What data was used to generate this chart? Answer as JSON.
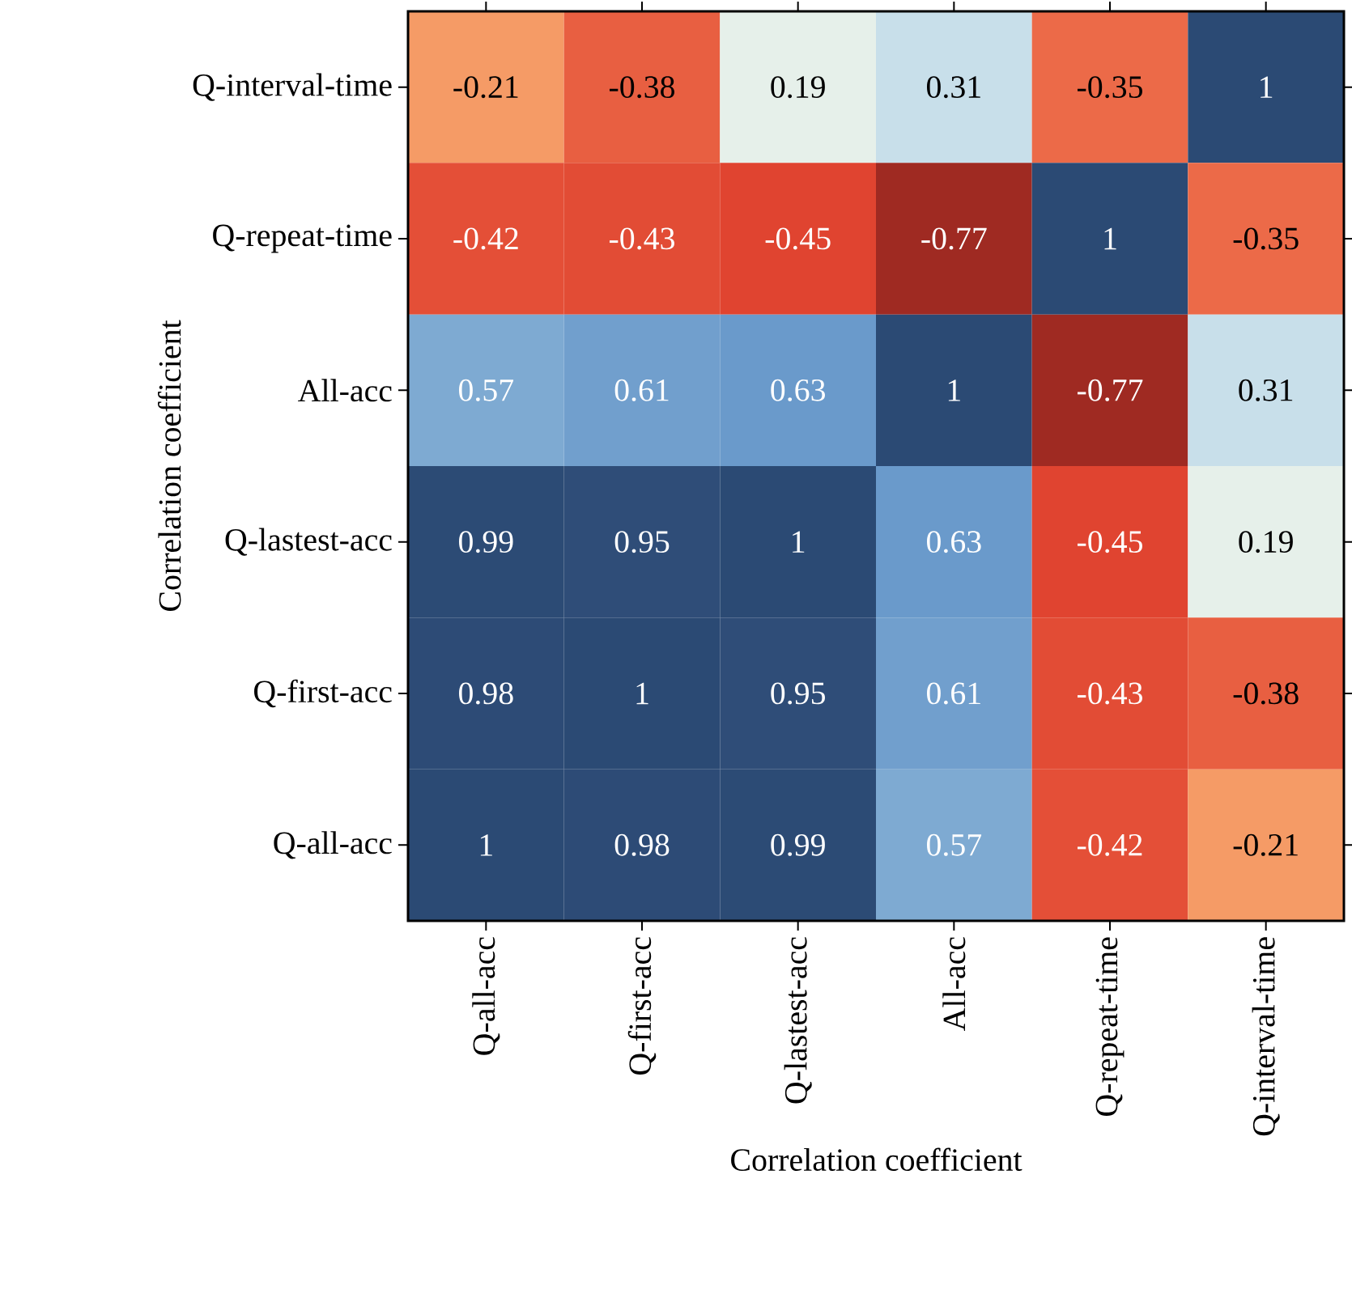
{
  "chart_data": {
    "type": "heatmap",
    "xlabel": "Correlation coefficient",
    "ylabel": "Correlation coefficient",
    "categories": [
      "Q-all-acc",
      "Q-first-acc",
      "Q-lastest-acc",
      "All-acc",
      "Q-repeat-time",
      "Q-interval-time"
    ],
    "y_categories": [
      "Q-interval-time",
      "Q-repeat-time",
      "All-acc",
      "Q-lastest-acc",
      "Q-first-acc",
      "Q-all-acc"
    ],
    "cells": [
      [
        -0.21,
        -0.38,
        0.19,
        0.31,
        -0.35,
        1
      ],
      [
        -0.42,
        -0.43,
        -0.45,
        -0.77,
        1,
        -0.35
      ],
      [
        0.57,
        0.61,
        0.63,
        1,
        -0.77,
        0.31
      ],
      [
        0.99,
        0.95,
        1,
        0.63,
        -0.45,
        0.19
      ],
      [
        0.98,
        1,
        0.95,
        0.61,
        -0.43,
        -0.38
      ],
      [
        1,
        0.98,
        0.99,
        0.57,
        -0.42,
        -0.21
      ]
    ],
    "data_labels": true
  }
}
